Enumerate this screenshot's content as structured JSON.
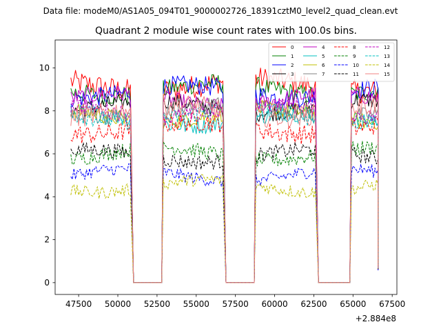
{
  "suptitle": "Data file: modeM0/AS1A05_094T01_9000002726_18391cztM0_level2_quad_clean.evt",
  "chart_data": {
    "type": "line",
    "title": "Quadrant 2 module wise count rates with 100.0s bins.",
    "xlabel": "",
    "ylabel": "",
    "x_offset_label": "+2.884e8",
    "xlim": [
      46000,
      67800
    ],
    "ylim": [
      -0.55,
      11.3
    ],
    "x_ticks": [
      47500,
      50000,
      52500,
      55000,
      57500,
      60000,
      62500,
      65000,
      67500
    ],
    "y_ticks": [
      0,
      2,
      4,
      6,
      8,
      10
    ],
    "grid": false,
    "legend_position": "top-right",
    "segments": [
      {
        "start": 47000,
        "end": 50800
      },
      {
        "start": 52900,
        "end": 56700
      },
      {
        "start": 58800,
        "end": 62600
      },
      {
        "start": 64900,
        "end": 66600
      }
    ],
    "gaps": [
      {
        "start": 51000,
        "end": 52800
      },
      {
        "start": 56900,
        "end": 58700
      },
      {
        "start": 62800,
        "end": 64800
      }
    ],
    "series": [
      {
        "name": "0",
        "color": "#ff0000",
        "dash": "solid",
        "level": 9.2,
        "noise": 0.55
      },
      {
        "name": "1",
        "color": "#008000",
        "dash": "solid",
        "level": 9.0,
        "noise": 0.45
      },
      {
        "name": "2",
        "color": "#0000ff",
        "dash": "solid",
        "level": 8.9,
        "noise": 0.45
      },
      {
        "name": "3",
        "color": "#000000",
        "dash": "solid",
        "level": 8.2,
        "noise": 0.4
      },
      {
        "name": "4",
        "color": "#bf00bf",
        "dash": "solid",
        "level": 8.5,
        "noise": 0.4
      },
      {
        "name": "5",
        "color": "#00bfbf",
        "dash": "solid",
        "level": 7.6,
        "noise": 0.4
      },
      {
        "name": "6",
        "color": "#bfbf00",
        "dash": "solid",
        "level": 7.8,
        "noise": 0.4
      },
      {
        "name": "7",
        "color": "#808080",
        "dash": "solid",
        "level": 8.0,
        "noise": 0.4
      },
      {
        "name": "8",
        "color": "#ff0000",
        "dash": "dashed",
        "level": 7.2,
        "noise": 0.45
      },
      {
        "name": "9",
        "color": "#008000",
        "dash": "dashed",
        "level": 6.0,
        "noise": 0.35
      },
      {
        "name": "10",
        "color": "#0000ff",
        "dash": "dashed",
        "level": 5.0,
        "noise": 0.3
      },
      {
        "name": "11",
        "color": "#000000",
        "dash": "dashed",
        "level": 5.9,
        "noise": 0.35
      },
      {
        "name": "12",
        "color": "#bf00bf",
        "dash": "dashed",
        "level": 8.0,
        "noise": 0.4
      },
      {
        "name": "13",
        "color": "#00bfbf",
        "dash": "dashed",
        "level": 7.8,
        "noise": 0.4
      },
      {
        "name": "14",
        "color": "#bfbf00",
        "dash": "dashed",
        "level": 4.5,
        "noise": 0.3
      },
      {
        "name": "15",
        "color": "#f08080",
        "dash": "solid",
        "level": 8.0,
        "noise": 0.5
      }
    ]
  }
}
